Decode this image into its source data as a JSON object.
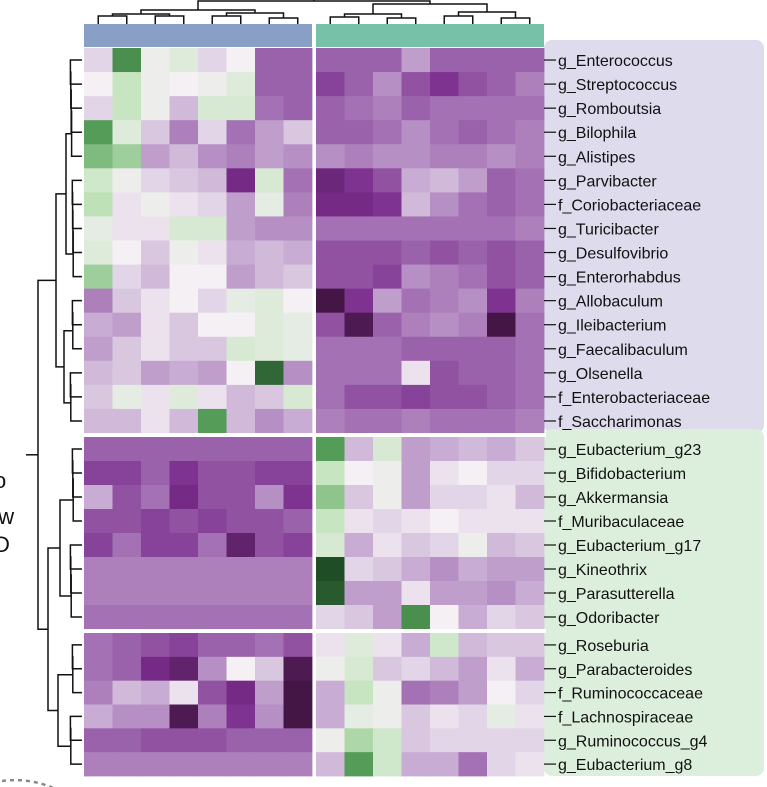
{
  "chart_data": {
    "type": "heatmap",
    "title": "",
    "xlabel": "",
    "ylabel": "",
    "legend_edge_text": [
      "o",
      "ow",
      "D"
    ],
    "column_groups": [
      {
        "count": 8,
        "color": "#8a9fc6"
      },
      {
        "count": 8,
        "color": "#78c1a9"
      }
    ],
    "row_groups": [
      {
        "count": 16,
        "color": "#dddbec"
      },
      {
        "count": 8,
        "color": "#dcefdc"
      },
      {
        "count": 6,
        "color": "#dcefdc"
      }
    ],
    "color_scale": {
      "min": -2,
      "max": 2,
      "stops": [
        "#3a1238",
        "#7b2e8e",
        "#b995c8",
        "#f4f0f4",
        "#c3e4bc",
        "#5aa55d",
        "#1f4d25"
      ]
    },
    "rows": [
      "g_Enterococcus",
      "g_Streptococcus",
      "g_Romboutsia",
      "g_Bilophila",
      "g_Alistipes",
      "g_Parvibacter",
      "f_Coriobacteriaceae",
      "g_Turicibacter",
      "g_Desulfovibrio",
      "g_Enterorhabdus",
      "g_Allobaculum",
      "g_Ileibacterium",
      "g_Faecalibaculum",
      "g_Olsenella",
      "f_Enterobacteriaceae",
      "f_Saccharimonas",
      "g_Eubacterium_g23",
      "g_Bifidobacterium",
      "g_Akkermansia",
      "f_Muribaculaceae",
      "g_Eubacterium_g17",
      "g_Kineothrix",
      "g_Parasutterella",
      "g_Odoribacter",
      "g_Roseburia",
      "g_Parabacteroides",
      "f_Ruminococcaceae",
      "f_Lachnospiraceae",
      "g_Ruminococcus_g4",
      "g_Eubacterium_g8"
    ],
    "values": [
      [
        -0.2,
        1.5,
        0.1,
        0.3,
        -0.2,
        0.0,
        -1.0,
        -1.0,
        -1.0,
        -1.0,
        -1.0,
        -0.6,
        -1.0,
        -1.0,
        -1.0,
        -1.0
      ],
      [
        0.0,
        0.6,
        0.1,
        0.0,
        0.1,
        0.3,
        -1.0,
        -1.0,
        -1.2,
        -1.0,
        -0.7,
        -1.1,
        -1.3,
        -1.1,
        -1.0,
        -0.8
      ],
      [
        -0.2,
        0.6,
        0.1,
        -0.4,
        0.4,
        0.4,
        -0.9,
        -1.0,
        -1.0,
        -0.9,
        -0.8,
        -1.0,
        -0.9,
        -0.9,
        -0.9,
        -0.9
      ],
      [
        1.4,
        0.3,
        -0.3,
        -0.8,
        -0.2,
        -0.9,
        -0.6,
        -0.3,
        -1.0,
        -1.0,
        -0.9,
        -0.7,
        -0.9,
        -1.0,
        -0.9,
        -0.8
      ],
      [
        1.1,
        0.9,
        -0.6,
        -0.4,
        -0.7,
        -0.8,
        -0.6,
        -0.7,
        -0.7,
        -0.8,
        -0.7,
        -0.7,
        -0.8,
        -0.8,
        -0.7,
        -0.8
      ],
      [
        0.5,
        0.1,
        -0.2,
        -0.3,
        -0.4,
        -1.4,
        0.4,
        -0.9,
        -1.5,
        -1.3,
        -1.1,
        -0.5,
        -0.4,
        -0.6,
        -1.0,
        -0.9
      ],
      [
        0.7,
        -0.1,
        0.1,
        -0.1,
        -0.2,
        -0.6,
        0.2,
        -0.8,
        -1.4,
        -1.4,
        -1.3,
        -0.4,
        -0.7,
        -0.9,
        -1.0,
        -0.9
      ],
      [
        0.2,
        -0.1,
        -0.1,
        0.4,
        0.4,
        -0.6,
        -0.7,
        -0.7,
        -0.9,
        -0.9,
        -0.9,
        -0.9,
        -0.9,
        -0.9,
        -0.9,
        -0.8
      ],
      [
        0.3,
        0.0,
        -0.3,
        0.1,
        -0.1,
        -0.5,
        -0.4,
        -0.5,
        -1.1,
        -1.1,
        -1.1,
        -1.0,
        -1.1,
        -1.0,
        -1.1,
        -1.0
      ],
      [
        0.9,
        -0.2,
        -0.4,
        0.0,
        0.0,
        -0.6,
        -0.4,
        -0.3,
        -1.1,
        -1.1,
        -1.2,
        -0.7,
        -0.8,
        -0.9,
        -1.1,
        -1.0
      ],
      [
        -0.8,
        -0.3,
        -0.1,
        0.0,
        -0.2,
        0.2,
        0.3,
        0.0,
        -1.9,
        -1.3,
        -0.6,
        -0.9,
        -0.8,
        -0.7,
        -1.3,
        -0.8
      ],
      [
        -0.5,
        -0.6,
        -0.1,
        -0.3,
        0.0,
        0.0,
        0.3,
        0.2,
        -1.1,
        -1.8,
        -1.0,
        -0.8,
        -0.7,
        -0.8,
        -1.9,
        -0.9
      ],
      [
        -0.6,
        -0.3,
        -0.1,
        -0.3,
        -0.3,
        0.4,
        0.3,
        0.2,
        -0.9,
        -0.9,
        -0.9,
        -1.0,
        -1.0,
        -1.0,
        -1.0,
        -0.9
      ],
      [
        -0.4,
        -0.3,
        -0.6,
        -0.5,
        -0.6,
        0.0,
        1.8,
        -0.7,
        -0.9,
        -0.9,
        -0.9,
        -0.1,
        -1.1,
        -1.0,
        -1.0,
        -0.9
      ],
      [
        -0.3,
        0.2,
        -0.1,
        0.3,
        -0.1,
        -0.4,
        -0.3,
        0.4,
        -0.9,
        -1.1,
        -1.1,
        -1.2,
        -1.1,
        -1.1,
        -1.0,
        -0.9
      ],
      [
        -0.4,
        -0.4,
        -0.1,
        -0.4,
        1.4,
        -0.4,
        -0.7,
        -0.5,
        -0.8,
        -0.9,
        -0.9,
        -0.8,
        -0.9,
        -0.9,
        -0.9,
        -0.8
      ],
      [
        -1.0,
        -1.0,
        -1.0,
        -1.0,
        -1.0,
        -1.0,
        -1.0,
        -1.0,
        1.4,
        -0.4,
        0.4,
        -0.6,
        -0.5,
        -0.4,
        -0.5,
        -0.3
      ],
      [
        -1.2,
        -1.2,
        -1.0,
        -1.3,
        -1.1,
        -1.1,
        -1.2,
        -1.2,
        0.6,
        0.0,
        0.1,
        -0.6,
        -0.1,
        0.0,
        -0.2,
        -0.2
      ],
      [
        -0.5,
        -1.1,
        -0.9,
        -1.4,
        -1.1,
        -1.1,
        -0.7,
        -1.3,
        1.0,
        -0.3,
        0.1,
        -0.6,
        -0.2,
        -0.2,
        -0.1,
        -0.4
      ],
      [
        -1.1,
        -1.1,
        -1.2,
        -1.1,
        -1.2,
        -1.1,
        -1.1,
        -1.0,
        0.6,
        -0.1,
        -0.2,
        -0.1,
        0.0,
        -0.1,
        -0.1,
        -0.1
      ],
      [
        -1.2,
        -0.9,
        -1.2,
        -1.2,
        -0.9,
        -1.6,
        -1.1,
        -1.2,
        0.4,
        -0.5,
        -0.1,
        -0.3,
        -0.2,
        0.1,
        -0.4,
        -0.3
      ],
      [
        -0.8,
        -0.8,
        -0.8,
        -0.8,
        -0.8,
        -0.8,
        -0.8,
        -0.8,
        2.0,
        -0.2,
        -0.3,
        -0.5,
        -0.7,
        -0.5,
        -0.6,
        -0.6
      ],
      [
        -0.8,
        -0.8,
        -0.8,
        -0.8,
        -0.8,
        -0.8,
        -0.8,
        -0.8,
        1.9,
        -0.6,
        -0.6,
        -0.1,
        -0.6,
        -0.6,
        -0.7,
        -0.5
      ],
      [
        -0.9,
        -0.9,
        -0.9,
        -0.9,
        -0.9,
        -0.9,
        -0.9,
        -0.9,
        -0.2,
        -0.3,
        -0.6,
        1.5,
        0.0,
        -0.5,
        -0.2,
        -0.3
      ],
      [
        -0.9,
        -1.0,
        -1.1,
        -1.2,
        -1.0,
        -1.0,
        -0.9,
        -1.1,
        -0.1,
        0.3,
        -0.1,
        -0.5,
        0.5,
        -0.4,
        -0.3,
        -0.3
      ],
      [
        -0.9,
        -1.0,
        -1.4,
        -1.6,
        -0.7,
        0.0,
        -0.3,
        -1.8,
        0.1,
        0.4,
        -0.3,
        -0.2,
        -0.4,
        -0.6,
        -0.1,
        -0.5
      ],
      [
        -0.8,
        -0.4,
        -0.5,
        -0.1,
        -1.1,
        -1.4,
        -0.6,
        -1.9,
        -0.5,
        0.6,
        0.1,
        -0.9,
        -0.8,
        -0.6,
        0.0,
        -0.2
      ],
      [
        -0.5,
        -0.7,
        -0.7,
        -1.8,
        -0.8,
        -1.3,
        -0.7,
        -1.9,
        -0.5,
        0.2,
        0.1,
        -0.3,
        -0.1,
        -0.2,
        0.2,
        -0.1
      ],
      [
        -1.0,
        -1.0,
        -1.1,
        -1.1,
        -1.1,
        -1.0,
        -1.0,
        -1.0,
        0.1,
        0.8,
        0.5,
        -0.3,
        -0.2,
        -0.2,
        -0.2,
        -0.2
      ],
      [
        -0.8,
        -0.8,
        -0.8,
        -0.8,
        -0.8,
        -0.8,
        -0.8,
        -0.8,
        -0.4,
        1.4,
        0.5,
        -0.5,
        -0.5,
        -0.9,
        -0.2,
        -0.1
      ]
    ]
  }
}
